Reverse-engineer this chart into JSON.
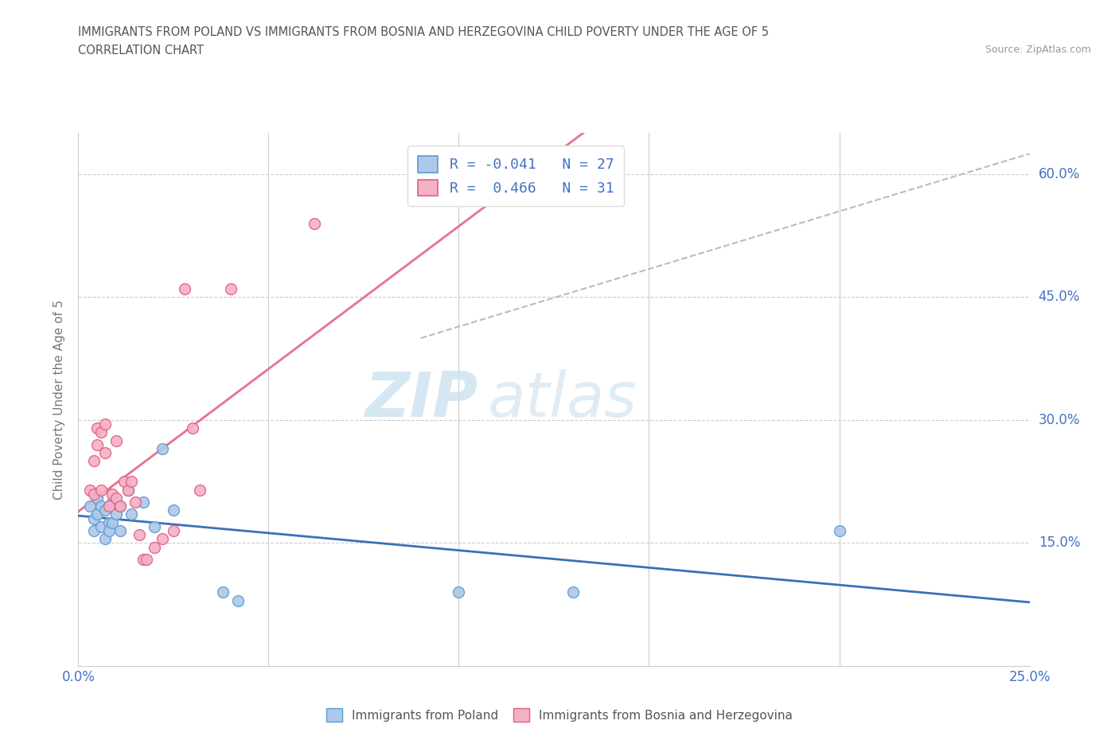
{
  "title_line1": "IMMIGRANTS FROM POLAND VS IMMIGRANTS FROM BOSNIA AND HERZEGOVINA CHILD POVERTY UNDER THE AGE OF 5",
  "title_line2": "CORRELATION CHART",
  "source_text": "Source: ZipAtlas.com",
  "ylabel": "Child Poverty Under the Age of 5",
  "xlim": [
    0.0,
    0.25
  ],
  "ylim": [
    0.0,
    0.65
  ],
  "x_ticks": [
    0.0,
    0.05,
    0.1,
    0.15,
    0.2,
    0.25
  ],
  "x_tick_labels": [
    "0.0%",
    "",
    "",
    "",
    "",
    "25.0%"
  ],
  "y_ticks": [
    0.0,
    0.15,
    0.3,
    0.45,
    0.6
  ],
  "y_tick_labels": [
    "",
    "15.0%",
    "30.0%",
    "45.0%",
    "60.0%"
  ],
  "poland_color": "#adc8e8",
  "bosnia_color": "#f5b0c5",
  "poland_edge": "#5b9bd5",
  "bosnia_edge": "#e06080",
  "trend_poland_color": "#3a6fbc",
  "trend_bosnia_color": "#e87090",
  "trend_dashed_color": "#bbbbbb",
  "legend_poland_label": "R = -0.041   N = 27",
  "legend_bosnia_label": "R =  0.466   N = 31",
  "watermark_zip": "ZIP",
  "watermark_atlas": "atlas",
  "poland_R": -0.041,
  "poland_N": 27,
  "bosnia_R": 0.466,
  "bosnia_N": 31,
  "poland_x": [
    0.003,
    0.004,
    0.004,
    0.005,
    0.005,
    0.006,
    0.006,
    0.007,
    0.007,
    0.008,
    0.008,
    0.009,
    0.009,
    0.01,
    0.011,
    0.011,
    0.013,
    0.014,
    0.017,
    0.02,
    0.022,
    0.025,
    0.038,
    0.042,
    0.1,
    0.13,
    0.2
  ],
  "poland_y": [
    0.195,
    0.18,
    0.165,
    0.205,
    0.185,
    0.195,
    0.17,
    0.19,
    0.155,
    0.175,
    0.165,
    0.2,
    0.175,
    0.185,
    0.195,
    0.165,
    0.215,
    0.185,
    0.2,
    0.17,
    0.265,
    0.19,
    0.09,
    0.08,
    0.09,
    0.09,
    0.165
  ],
  "bosnia_x": [
    0.003,
    0.004,
    0.004,
    0.005,
    0.005,
    0.006,
    0.006,
    0.007,
    0.007,
    0.008,
    0.009,
    0.01,
    0.01,
    0.011,
    0.012,
    0.013,
    0.014,
    0.015,
    0.016,
    0.017,
    0.018,
    0.02,
    0.022,
    0.025,
    0.028,
    0.03,
    0.032,
    0.04,
    0.062,
    0.11,
    0.13
  ],
  "bosnia_y": [
    0.215,
    0.25,
    0.21,
    0.29,
    0.27,
    0.215,
    0.285,
    0.295,
    0.26,
    0.195,
    0.21,
    0.205,
    0.275,
    0.195,
    0.225,
    0.215,
    0.225,
    0.2,
    0.16,
    0.13,
    0.13,
    0.145,
    0.155,
    0.165,
    0.46,
    0.29,
    0.215,
    0.46,
    0.54,
    0.62,
    0.57
  ]
}
